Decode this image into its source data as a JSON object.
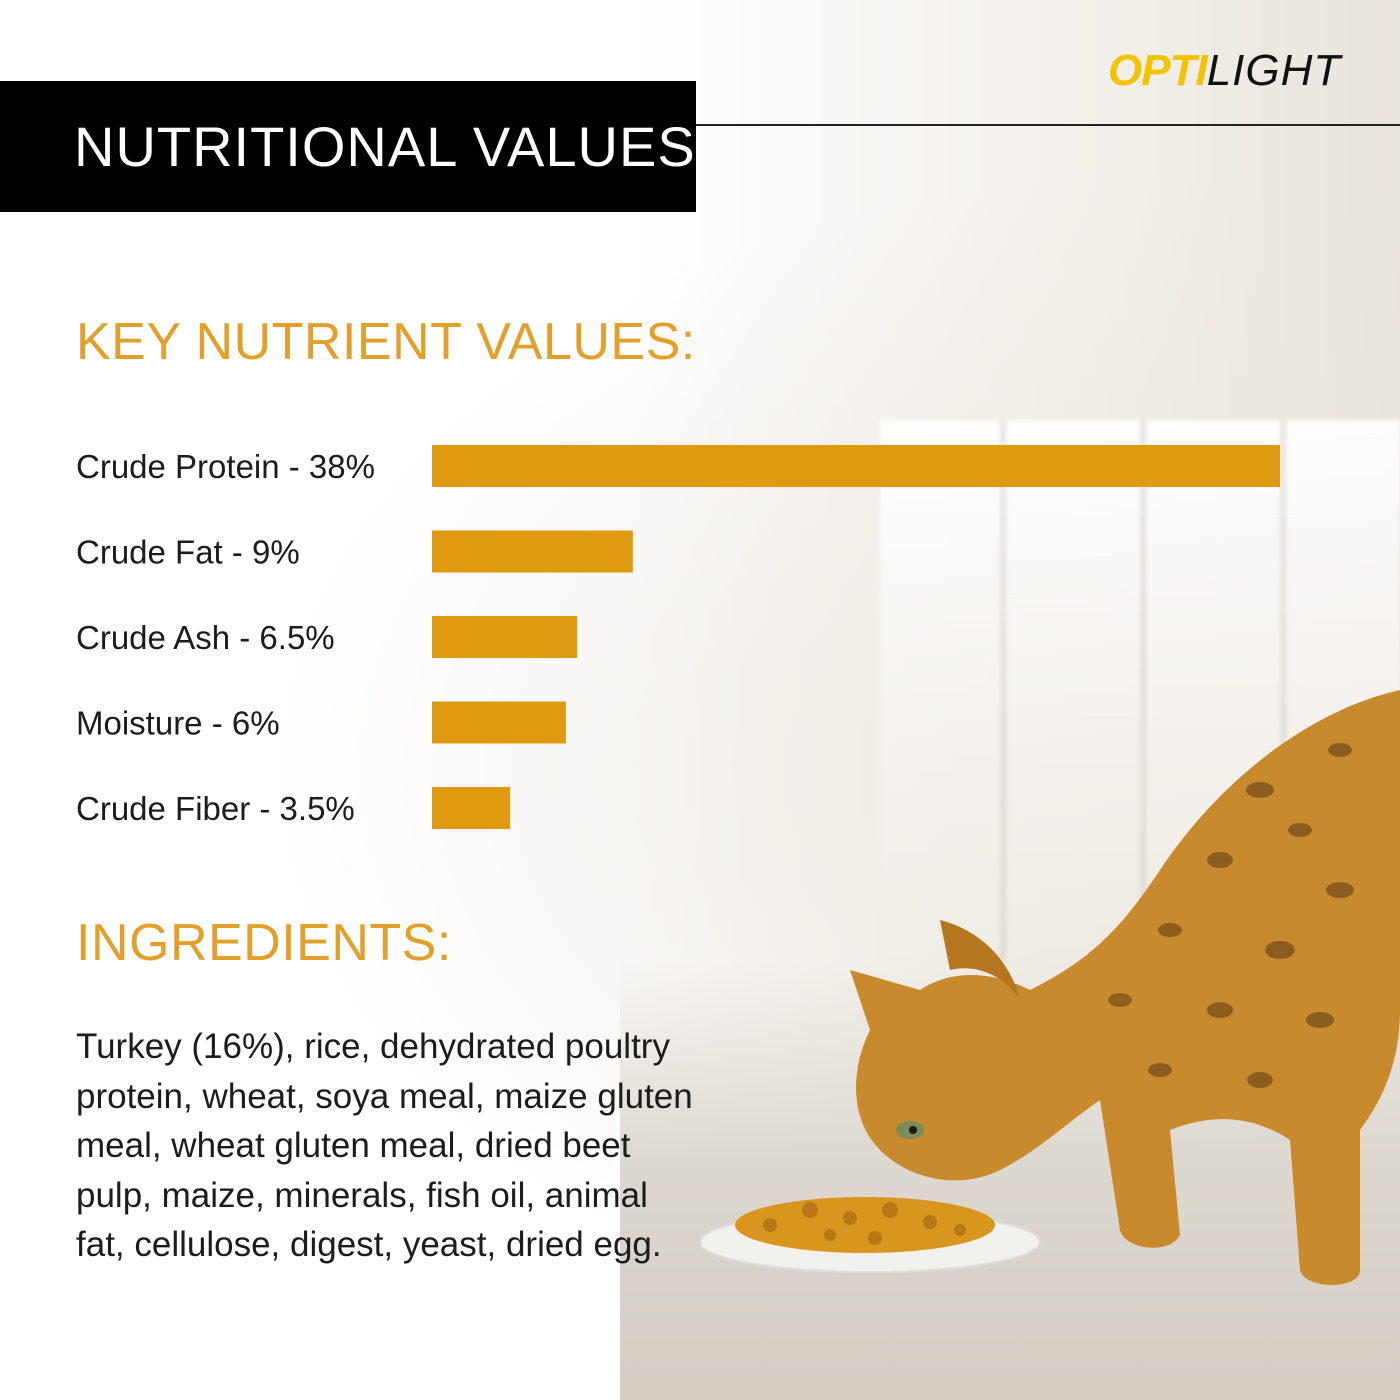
{
  "logo": {
    "part1": "OPTI",
    "part2": "LIGHT"
  },
  "header": {
    "title": "NUTRITIONAL VALUES"
  },
  "key_nutrients": {
    "title": "KEY NUTRIENT VALUES:"
  },
  "ingredients": {
    "title": "INGREDIENTS:",
    "text": "Turkey (16%), rice, dehydrated poultry protein, wheat, soya meal, maize gluten meal, wheat gluten meal, dried beet pulp, maize, minerals, fish oil, animal fat, cellulose, digest, yeast, dried egg."
  },
  "colors": {
    "accent": "#e09a12",
    "header_bg": "#000000",
    "logo_yellow": "#f2c300"
  },
  "chart_data": {
    "type": "bar",
    "orientation": "horizontal",
    "categories": [
      "Crude Protein - 38%",
      "Crude Fat - 9%",
      "Crude Ash - 6.5%",
      "Moisture - 6%",
      "Crude Fiber - 3.5%"
    ],
    "values": [
      38,
      9,
      6.5,
      6,
      3.5
    ],
    "unit": "%",
    "grid": false,
    "legend": "none",
    "color": "#e09a12"
  }
}
